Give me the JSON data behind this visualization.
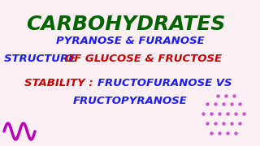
{
  "background_color": "#fdf0f5",
  "title": "CARBOHYDRATES",
  "title_color": "#006400",
  "title_fontsize": 18,
  "title_style": "italic",
  "title_weight": "bold",
  "line2_text": "PYRANOSE & FURANOSE",
  "line2_color": "#1a1aff",
  "line3a_text": "STRUCTURE ",
  "line3a_color": "#1a1aff",
  "line3b_text": "OF GLUCOSE & FRUCTOSE",
  "line3b_color": "#cc0000",
  "line4a_text": "STABILITY : ",
  "line4a_color": "#cc0000",
  "line4b_text": "FRUCTOFURANOSE VS",
  "line4b_color": "#1a1aff",
  "line5_text": "FRUCTOPYRANOSE",
  "line5_color": "#1a1aff",
  "text_fontsize": 9.5,
  "text_weight": "bold",
  "text_style": "italic",
  "squiggle_color": "#bb00bb",
  "dot_color": "#cc55cc"
}
